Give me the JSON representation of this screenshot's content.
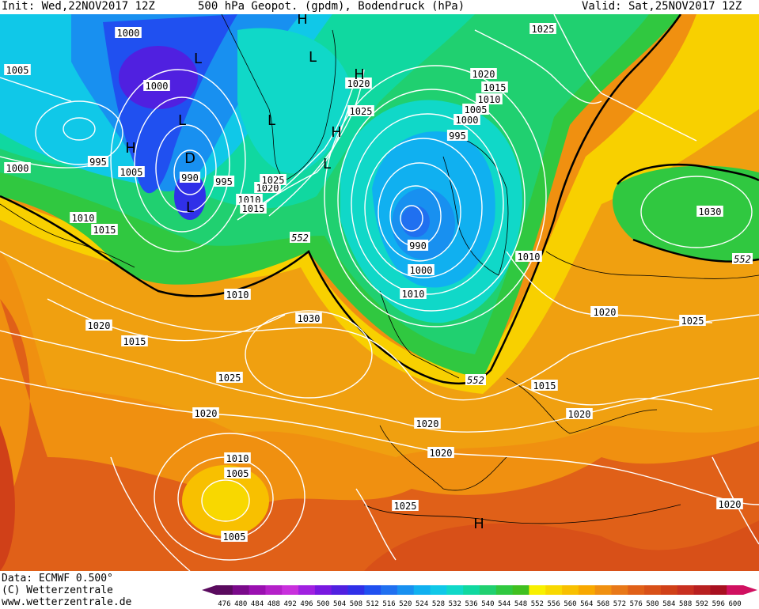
{
  "header": {
    "init": "Init: Wed,22NOV2017 12Z",
    "title": "500 hPa Geopot. (gpdm), Bodendruck (hPa)",
    "valid": "Valid: Sat,25NOV2017 12Z"
  },
  "footer": {
    "data_line": "Data: ECMWF  0.500°",
    "copyright": "(C) Wetterzentrale",
    "website": "www.wetterzentrale.de"
  },
  "legend": {
    "values": [
      476,
      480,
      484,
      488,
      492,
      496,
      500,
      504,
      508,
      512,
      516,
      520,
      524,
      528,
      532,
      536,
      540,
      544,
      548,
      552,
      556,
      560,
      564,
      568,
      572,
      576,
      580,
      584,
      588,
      592,
      596,
      600
    ],
    "colors": [
      "#5a0a5e",
      "#7a0a8a",
      "#9a10b0",
      "#b420c8",
      "#c830dc",
      "#a020e0",
      "#7818e0",
      "#5020e0",
      "#3030e8",
      "#2050f0",
      "#2070f0",
      "#1890f0",
      "#10b0f0",
      "#10c8e8",
      "#10d8c8",
      "#10d8a0",
      "#20d070",
      "#30c840",
      "#40c020",
      "#f8f000",
      "#f8d800",
      "#f8c000",
      "#f8a800",
      "#f09010",
      "#e87818",
      "#e06018",
      "#d85018",
      "#d04018",
      "#c83020",
      "#b82020",
      "#a81020",
      "#d01060"
    ]
  },
  "isobars": [
    "1000",
    "1005",
    "1000",
    "995",
    "1005",
    "990",
    "995",
    "1000",
    "1010",
    "1015",
    "1010",
    "1020",
    "1015",
    "1025",
    "1010",
    "1030",
    "1020",
    "1025",
    "1020",
    "1015",
    "1010",
    "1005",
    "1005",
    "1020",
    "1025",
    "1020",
    "1015",
    "1010",
    "1005",
    "1000",
    "995",
    "990",
    "1000",
    "1010",
    "1025",
    "1020",
    "1030",
    "1010",
    "1020",
    "1025",
    "1015",
    "1020",
    "1020",
    "1025",
    "1020",
    "1020"
  ],
  "geopot_labels": [
    "552",
    "552",
    "552"
  ],
  "pressure_centers": [
    "H",
    "L",
    "L",
    "L",
    "H",
    "L",
    "H",
    "H",
    "H",
    "L",
    "L",
    "D"
  ]
}
